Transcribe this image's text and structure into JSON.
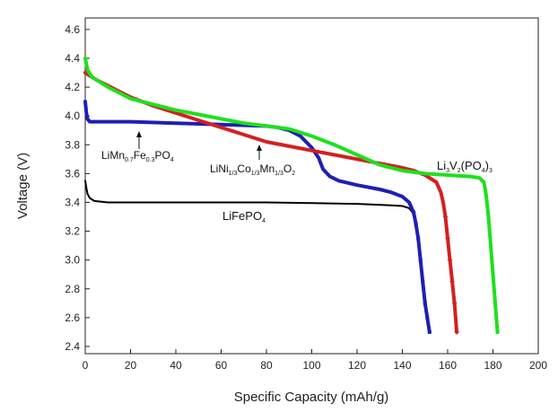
{
  "chart_data": {
    "type": "line",
    "xlabel": "Specific Capacity (mAh/g)",
    "ylabel": "Voltage (V)",
    "xlim": [
      0,
      200
    ],
    "ylim": [
      2.35,
      4.68
    ],
    "x_ticks": [
      "0",
      "20",
      "40",
      "60",
      "80",
      "100",
      "120",
      "140",
      "160",
      "180",
      "200"
    ],
    "y_ticks": [
      "2.4",
      "2.6",
      "2.8",
      "3.0",
      "3.2",
      "3.4",
      "3.6",
      "3.8",
      "4.0",
      "4.2",
      "4.4",
      "4.6"
    ],
    "grid": false,
    "series": [
      {
        "name": "LiFePO4",
        "color": "#000000",
        "points": [
          [
            0,
            3.55
          ],
          [
            0.5,
            3.5
          ],
          [
            1,
            3.46
          ],
          [
            2,
            3.43
          ],
          [
            4,
            3.41
          ],
          [
            10,
            3.4
          ],
          [
            20,
            3.4
          ],
          [
            40,
            3.4
          ],
          [
            60,
            3.4
          ],
          [
            80,
            3.4
          ],
          [
            100,
            3.395
          ],
          [
            120,
            3.39
          ],
          [
            135,
            3.38
          ],
          [
            140,
            3.375
          ],
          [
            143,
            3.36
          ],
          [
            145,
            3.32
          ],
          [
            146,
            3.25
          ],
          [
            147,
            3.15
          ],
          [
            148,
            3.0
          ],
          [
            149,
            2.85
          ],
          [
            150,
            2.7
          ],
          [
            151,
            2.58
          ],
          [
            152,
            2.5
          ]
        ]
      },
      {
        "name": "LiMn0.7Fe0.3PO4",
        "color": "#1f1fb4",
        "points": [
          [
            0,
            4.1
          ],
          [
            0.5,
            4.02
          ],
          [
            1,
            3.98
          ],
          [
            2,
            3.96
          ],
          [
            5,
            3.96
          ],
          [
            20,
            3.96
          ],
          [
            40,
            3.95
          ],
          [
            60,
            3.94
          ],
          [
            80,
            3.93
          ],
          [
            85,
            3.92
          ],
          [
            90,
            3.9
          ],
          [
            95,
            3.86
          ],
          [
            100,
            3.78
          ],
          [
            103,
            3.71
          ],
          [
            105,
            3.63
          ],
          [
            108,
            3.58
          ],
          [
            112,
            3.55
          ],
          [
            120,
            3.52
          ],
          [
            130,
            3.49
          ],
          [
            135,
            3.47
          ],
          [
            140,
            3.44
          ],
          [
            143,
            3.4
          ],
          [
            145,
            3.33
          ],
          [
            146,
            3.25
          ],
          [
            147,
            3.15
          ],
          [
            148,
            3.0
          ],
          [
            149,
            2.85
          ],
          [
            150,
            2.7
          ],
          [
            151,
            2.6
          ],
          [
            152,
            2.5
          ]
        ]
      },
      {
        "name": "LiNi1/3Co1/3Mn1/3O2",
        "color": "#d42020",
        "points": [
          [
            0,
            4.3
          ],
          [
            5,
            4.25
          ],
          [
            10,
            4.21
          ],
          [
            20,
            4.13
          ],
          [
            30,
            4.07
          ],
          [
            40,
            4.02
          ],
          [
            50,
            3.97
          ],
          [
            60,
            3.92
          ],
          [
            70,
            3.87
          ],
          [
            80,
            3.82
          ],
          [
            90,
            3.79
          ],
          [
            100,
            3.76
          ],
          [
            110,
            3.73
          ],
          [
            120,
            3.7
          ],
          [
            130,
            3.67
          ],
          [
            140,
            3.64
          ],
          [
            145,
            3.62
          ],
          [
            150,
            3.59
          ],
          [
            155,
            3.54
          ],
          [
            157,
            3.47
          ],
          [
            158,
            3.4
          ],
          [
            159,
            3.3
          ],
          [
            160,
            3.15
          ],
          [
            161,
            3.0
          ],
          [
            162,
            2.85
          ],
          [
            163,
            2.7
          ],
          [
            164,
            2.5
          ]
        ]
      },
      {
        "name": "Li3V2(PO4)3",
        "color": "#1ee01e",
        "points": [
          [
            0,
            4.4
          ],
          [
            1,
            4.32
          ],
          [
            3,
            4.27
          ],
          [
            10,
            4.2
          ],
          [
            20,
            4.12
          ],
          [
            30,
            4.08
          ],
          [
            40,
            4.04
          ],
          [
            50,
            4.01
          ],
          [
            60,
            3.98
          ],
          [
            70,
            3.95
          ],
          [
            80,
            3.93
          ],
          [
            90,
            3.91
          ],
          [
            100,
            3.86
          ],
          [
            110,
            3.8
          ],
          [
            120,
            3.73
          ],
          [
            130,
            3.66
          ],
          [
            140,
            3.62
          ],
          [
            150,
            3.6
          ],
          [
            160,
            3.59
          ],
          [
            170,
            3.58
          ],
          [
            174,
            3.57
          ],
          [
            176,
            3.54
          ],
          [
            177,
            3.45
          ],
          [
            178,
            3.3
          ],
          [
            179,
            3.1
          ],
          [
            180,
            2.9
          ],
          [
            181,
            2.7
          ],
          [
            182,
            2.5
          ]
        ]
      }
    ],
    "annotations": [
      {
        "base": "LiMn",
        "parts": [
          [
            "0.7",
            "sub"
          ],
          [
            "Fe",
            ""
          ],
          [
            "0.3",
            "sub"
          ],
          [
            "PO",
            ""
          ],
          [
            "4",
            "sub"
          ]
        ],
        "arrow_to": [
          24,
          3.95
        ]
      },
      {
        "base": "LiNi",
        "parts": [
          [
            "1/3",
            "sub"
          ],
          [
            "Co",
            ""
          ],
          [
            "1/3",
            "sub"
          ],
          [
            "Mn",
            ""
          ],
          [
            "1/3",
            "sub"
          ],
          [
            "O",
            ""
          ],
          [
            "2",
            "sub"
          ]
        ],
        "arrow_to": [
          77,
          3.8
        ]
      },
      {
        "base": "Li3V2(PO4)3",
        "parts": []
      },
      {
        "base": "LiFePO4",
        "parts": []
      }
    ]
  }
}
